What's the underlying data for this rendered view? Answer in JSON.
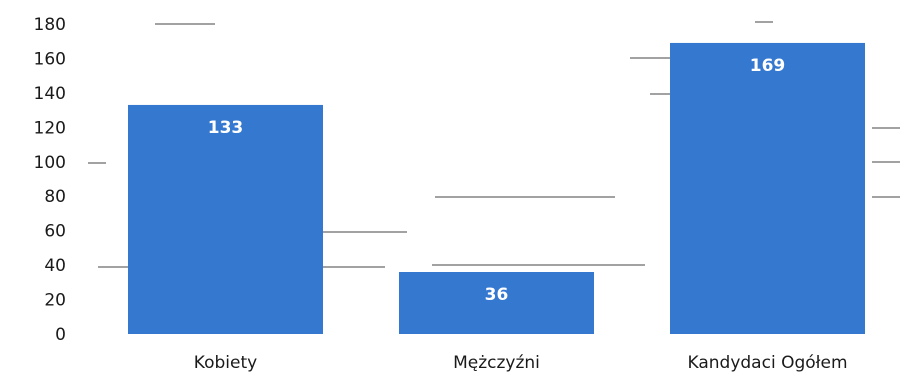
{
  "chart_data": {
    "type": "bar",
    "categories": [
      "Kobiety",
      "Mężczyźni",
      "Kandydaci Ogółem"
    ],
    "values": [
      133,
      36,
      169
    ],
    "data_labels": [
      "133",
      "36",
      "169"
    ],
    "title": "",
    "xlabel": "",
    "ylabel": "",
    "ylim": [
      0,
      180
    ],
    "yticks": [
      0,
      20,
      40,
      60,
      80,
      100,
      120,
      140,
      160,
      180
    ],
    "ytick_labels": [
      "0",
      "20",
      "40",
      "60",
      "80",
      "100",
      "120",
      "140",
      "160",
      "180"
    ],
    "grid": false,
    "legend": "none",
    "bar_color": "#3478d0",
    "background_color": "#ffffff"
  }
}
